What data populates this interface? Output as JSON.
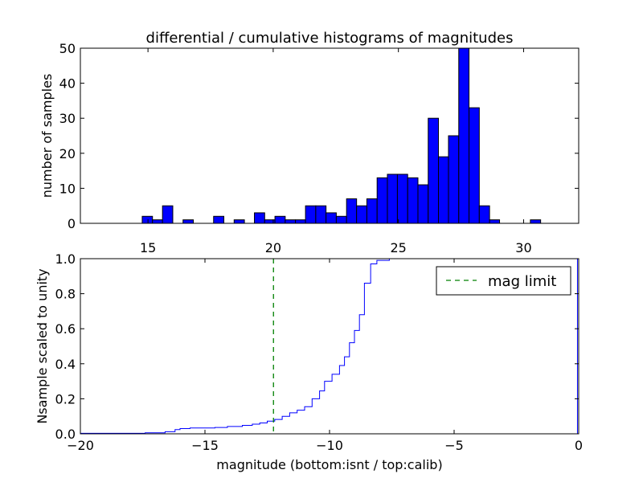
{
  "chart_data": [
    {
      "type": "bar",
      "title": "differential / cumulative histograms of magnitudes",
      "xlabel": "",
      "ylabel": "number of samples",
      "xlim": [
        12.3,
        32.2
      ],
      "ylim": [
        0,
        50
      ],
      "x_ticks": [
        "15",
        "20",
        "25",
        "30"
      ],
      "y_ticks": [
        "0",
        "10",
        "20",
        "30",
        "40",
        "50"
      ],
      "grid": false,
      "colors": {
        "bar": "#0000ff",
        "edge": "#000000"
      },
      "bins": [
        {
          "x0": 14.77,
          "x1": 15.18,
          "count": 2
        },
        {
          "x0": 15.18,
          "x1": 15.58,
          "count": 1
        },
        {
          "x0": 15.58,
          "x1": 15.99,
          "count": 5
        },
        {
          "x0": 16.4,
          "x1": 16.81,
          "count": 1
        },
        {
          "x0": 17.62,
          "x1": 18.03,
          "count": 2
        },
        {
          "x0": 18.44,
          "x1": 18.85,
          "count": 1
        },
        {
          "x0": 19.25,
          "x1": 19.66,
          "count": 3
        },
        {
          "x0": 19.66,
          "x1": 20.07,
          "count": 1
        },
        {
          "x0": 20.07,
          "x1": 20.48,
          "count": 2
        },
        {
          "x0": 20.48,
          "x1": 20.89,
          "count": 1
        },
        {
          "x0": 20.89,
          "x1": 21.29,
          "count": 1
        },
        {
          "x0": 21.29,
          "x1": 21.7,
          "count": 5
        },
        {
          "x0": 21.7,
          "x1": 22.11,
          "count": 5
        },
        {
          "x0": 22.11,
          "x1": 22.52,
          "count": 3
        },
        {
          "x0": 22.52,
          "x1": 22.93,
          "count": 2
        },
        {
          "x0": 22.93,
          "x1": 23.33,
          "count": 7
        },
        {
          "x0": 23.33,
          "x1": 23.74,
          "count": 5
        },
        {
          "x0": 23.74,
          "x1": 24.15,
          "count": 7
        },
        {
          "x0": 24.15,
          "x1": 24.56,
          "count": 13
        },
        {
          "x0": 24.56,
          "x1": 24.96,
          "count": 14
        },
        {
          "x0": 24.96,
          "x1": 25.37,
          "count": 14
        },
        {
          "x0": 25.37,
          "x1": 25.78,
          "count": 13
        },
        {
          "x0": 25.78,
          "x1": 26.19,
          "count": 11
        },
        {
          "x0": 26.19,
          "x1": 26.6,
          "count": 30
        },
        {
          "x0": 26.6,
          "x1": 27.0,
          "count": 19
        },
        {
          "x0": 27.0,
          "x1": 27.41,
          "count": 25
        },
        {
          "x0": 27.41,
          "x1": 27.82,
          "count": 50
        },
        {
          "x0": 27.82,
          "x1": 28.23,
          "count": 33
        },
        {
          "x0": 28.23,
          "x1": 28.64,
          "count": 5
        },
        {
          "x0": 28.64,
          "x1": 29.04,
          "count": 1
        },
        {
          "x0": 30.27,
          "x1": 30.68,
          "count": 1
        }
      ]
    },
    {
      "type": "line",
      "title": "",
      "xlabel": "magnitude (bottom:isnt / top:calib)",
      "ylabel": "Nsample scaled to unity",
      "xlim": [
        -20,
        0
      ],
      "ylim": [
        0,
        1
      ],
      "x_ticks": [
        "−20",
        "−15",
        "−10",
        "−5",
        "0"
      ],
      "y_ticks": [
        "0.0",
        "0.2",
        "0.4",
        "0.6",
        "0.8",
        "1.0"
      ],
      "grid": false,
      "legend": {
        "placement": "top-right",
        "entries": [
          "mag limit"
        ]
      },
      "colors": {
        "cumulative": "#0000ff",
        "mag_limit": "#008000"
      },
      "mag_limit": -12.25,
      "series": [
        {
          "step": true,
          "x": [
            -20.0,
            -17.4,
            -16.6,
            -16.2,
            -16.0,
            -15.6,
            -14.6,
            -14.1,
            -13.5,
            -13.1,
            -12.8,
            -12.5,
            -12.2,
            -11.9,
            -11.6,
            -11.3,
            -11.0,
            -10.7,
            -10.4,
            -10.2,
            -9.9,
            -9.6,
            -9.4,
            -9.2,
            -9.0,
            -8.8,
            -8.6,
            -8.35,
            -8.1,
            -7.6,
            -0.05,
            -0.05
          ],
          "y": [
            0.003,
            0.006,
            0.012,
            0.024,
            0.03,
            0.033,
            0.036,
            0.042,
            0.048,
            0.055,
            0.062,
            0.072,
            0.082,
            0.1,
            0.12,
            0.135,
            0.155,
            0.2,
            0.245,
            0.3,
            0.34,
            0.39,
            0.44,
            0.52,
            0.59,
            0.68,
            0.86,
            0.97,
            0.99,
            1.0,
            1.0,
            0.0
          ]
        }
      ]
    }
  ]
}
